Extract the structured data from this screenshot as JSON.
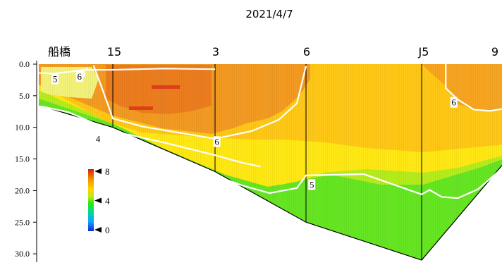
{
  "chart_data": {
    "type": "heatmap",
    "title": "2021/4/7",
    "y_ticks": [
      "0.0",
      "5.0",
      "10.0",
      "15.0",
      "20.0",
      "25.0",
      "30.0"
    ],
    "ylim": [
      0,
      31
    ],
    "y_reversed": true,
    "stations": [
      {
        "label": "船橋",
        "x": 0
      },
      {
        "label": "15",
        "x": 1
      },
      {
        "label": "3",
        "x": 2
      },
      {
        "label": "6",
        "x": 3
      },
      {
        "label": "J5",
        "x": 4
      },
      {
        "label": "9",
        "x": 5
      }
    ],
    "station_lines": [
      {
        "station": "15",
        "x": 1,
        "depth": 10
      },
      {
        "station": "3",
        "x": 2,
        "depth": 17
      },
      {
        "station": "6",
        "x": 3,
        "depth": 25
      },
      {
        "station": "J5",
        "x": 4,
        "depth": 31
      }
    ],
    "bottom_profile": [
      {
        "x": 0,
        "depth": 6.5
      },
      {
        "x": 1,
        "depth": 10
      },
      {
        "x": 2,
        "depth": 17
      },
      {
        "x": 3,
        "depth": 25
      },
      {
        "x": 4,
        "depth": 31
      },
      {
        "x": 5,
        "depth": 16
      }
    ],
    "colorbar": {
      "ticks": [
        "8",
        "4",
        "0"
      ],
      "min": 0,
      "max": 8,
      "colors": [
        "#d81e05",
        "#f08c00",
        "#ffd500",
        "#b8ec1a",
        "#2ee80a",
        "#00d8a0",
        "#14a0ff",
        "#0a2cd0"
      ]
    },
    "contours": [
      {
        "label": "5",
        "points": [
          [
            0.0,
            1.4
          ],
          [
            0.2,
            1.5
          ],
          [
            0.42,
            1.2
          ],
          [
            0.62,
            0.9
          ],
          [
            1.0,
            0.9
          ],
          [
            1.5,
            0.7
          ],
          [
            2.0,
            0.8
          ]
        ]
      },
      {
        "label": "6",
        "points": [
          [
            0.55,
            2.6
          ],
          [
            0.62,
            1.8
          ],
          [
            0.6,
            1.1
          ],
          [
            0.66,
            0.6
          ]
        ]
      },
      {
        "label": "6",
        "points": [
          [
            0.74,
            0.2
          ],
          [
            0.86,
            4.0
          ],
          [
            1.0,
            8.6
          ],
          [
            1.3,
            9.9
          ],
          [
            2.0,
            11.8
          ],
          [
            2.4,
            10.6
          ],
          [
            2.7,
            8.8
          ],
          [
            2.9,
            6.2
          ],
          [
            3.0,
            0.3
          ]
        ]
      },
      {
        "label": "4",
        "points": [
          [
            0.0,
            6.6
          ],
          [
            0.4,
            7.6
          ],
          [
            1.0,
            10.6
          ],
          [
            1.5,
            12.4
          ],
          [
            2.0,
            14.4
          ],
          [
            2.3,
            15.6
          ],
          [
            2.5,
            16.2
          ]
        ]
      },
      {
        "label": "5",
        "points": [
          [
            2.0,
            17.6
          ],
          [
            2.3,
            19.2
          ],
          [
            2.6,
            20.4
          ],
          [
            2.9,
            19.6
          ],
          [
            3.0,
            17.6
          ],
          [
            3.5,
            17.4
          ],
          [
            4.0,
            20.6
          ],
          [
            4.1,
            19.9
          ],
          [
            4.25,
            21.0
          ],
          [
            4.45,
            21.2
          ],
          [
            4.7,
            19.8
          ],
          [
            5.0,
            16.5
          ]
        ]
      },
      {
        "label": "6",
        "points": [
          [
            4.3,
            0.0
          ],
          [
            4.3,
            3.8
          ],
          [
            4.45,
            5.6
          ],
          [
            4.65,
            7.2
          ],
          [
            4.85,
            7.4
          ],
          [
            5.0,
            7.1
          ]
        ]
      }
    ],
    "contour_labels": [
      {
        "text": "5",
        "x": 0.22,
        "depth": 2.4
      },
      {
        "text": "6",
        "x": 0.55,
        "depth": 2.0
      },
      {
        "text": "4",
        "x": 0.8,
        "depth": 11.9
      },
      {
        "text": "6",
        "x": 2.02,
        "depth": 12.3
      },
      {
        "text": "5",
        "x": 3.05,
        "depth": 19.1
      },
      {
        "text": "6",
        "x": 4.4,
        "depth": 6.1
      }
    ]
  }
}
